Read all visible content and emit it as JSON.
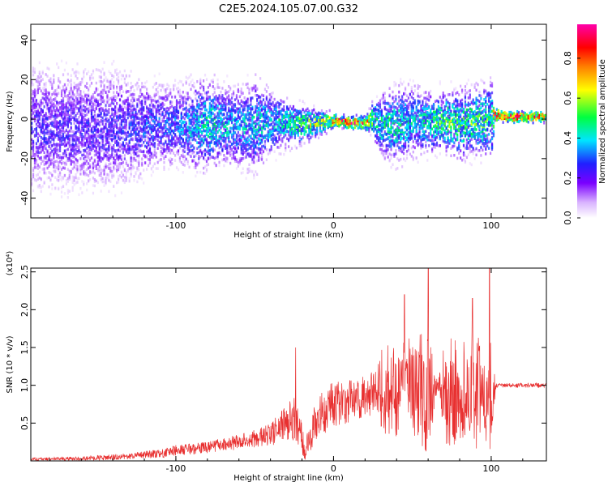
{
  "title": "C2E5.2024.105.07.00.G32",
  "chart_data": [
    {
      "type": "heatmap",
      "xlabel": "Height of straight line (km)",
      "ylabel": "Frequency (Hz)",
      "xlim": [
        -192,
        135
      ],
      "ylim": [
        -50,
        48
      ],
      "xticks": [
        -100,
        0,
        100
      ],
      "yticks": [
        -40,
        -20,
        0,
        20,
        40
      ],
      "colorbar": {
        "label": "Normalized spectral amplitude",
        "range": [
          0,
          0.97
        ],
        "ticks": [
          0.0,
          0.2,
          0.4,
          0.6,
          0.8
        ],
        "colormap": [
          "#ffffff",
          "#d9b3ff",
          "#7a00ff",
          "#2020ff",
          "#00e5ff",
          "#00ff40",
          "#ffff00",
          "#ff8000",
          "#ff0000",
          "#ff00aa"
        ]
      },
      "ridge": {
        "x": [
          -140,
          -120,
          -100,
          -90,
          -80,
          -70,
          -60,
          -50,
          -40,
          -30,
          -20,
          -10,
          0,
          10,
          20,
          25,
          30,
          40,
          50,
          60,
          70,
          80,
          90,
          100,
          102,
          110,
          120,
          135
        ],
        "freq": [
          -5,
          -4,
          -3,
          -4,
          -2,
          -3,
          -4,
          -3,
          -2,
          -2,
          -3,
          -2,
          -1,
          -2,
          -2,
          0,
          -3,
          -3,
          -1,
          -2,
          -1,
          -3,
          -1,
          -1,
          2,
          1,
          1,
          1
        ],
        "amplitude": [
          0.25,
          0.3,
          0.32,
          0.38,
          0.45,
          0.4,
          0.38,
          0.4,
          0.42,
          0.45,
          0.55,
          0.6,
          0.8,
          0.85,
          0.85,
          0.5,
          0.45,
          0.45,
          0.4,
          0.45,
          0.55,
          0.5,
          0.55,
          0.5,
          0.9,
          0.95,
          0.9,
          0.85
        ],
        "spread": [
          40,
          30,
          25,
          28,
          30,
          25,
          25,
          30,
          20,
          15,
          12,
          8,
          4,
          4,
          4,
          12,
          20,
          25,
          22,
          20,
          18,
          22,
          20,
          25,
          4,
          3,
          3,
          3
        ]
      }
    },
    {
      "type": "line",
      "xlabel": "Height of straight line (km)",
      "ylabel": "SNR (10 * v/v)",
      "scale_label": "(x10⁴)",
      "xlim": [
        -192,
        135
      ],
      "ylim": [
        0,
        2.55
      ],
      "xticks": [
        -100,
        0,
        100
      ],
      "yticks": [
        0.5,
        1.0,
        1.5,
        2.0,
        2.5
      ],
      "color": "#e83030",
      "envelope": {
        "x": [
          -192,
          -160,
          -130,
          -110,
          -100,
          -80,
          -60,
          -40,
          -25,
          -20,
          -18,
          -15,
          -10,
          0,
          10,
          20,
          25,
          28,
          30,
          40,
          50,
          60,
          66,
          70,
          80,
          90,
          100,
          103,
          110,
          120,
          135
        ],
        "baseline": [
          0.02,
          0.03,
          0.06,
          0.1,
          0.14,
          0.18,
          0.25,
          0.35,
          0.55,
          0.3,
          0.1,
          0.35,
          0.6,
          0.75,
          0.8,
          0.85,
          0.9,
          0.95,
          0.9,
          0.9,
          0.95,
          0.9,
          1.0,
          0.9,
          0.9,
          0.95,
          0.9,
          1.0,
          1.0,
          1.0,
          1.0
        ],
        "spread": [
          0.02,
          0.03,
          0.04,
          0.06,
          0.07,
          0.08,
          0.1,
          0.15,
          0.3,
          0.2,
          0.1,
          0.25,
          0.3,
          0.3,
          0.3,
          0.3,
          0.3,
          0.3,
          0.6,
          0.7,
          0.75,
          0.8,
          0.05,
          0.7,
          0.75,
          0.8,
          0.75,
          0.03,
          0.03,
          0.03,
          0.03
        ],
        "peaks": [
          {
            "x": -24,
            "y": 1.5
          },
          {
            "x": 60,
            "y": 2.55
          },
          {
            "x": 99,
            "y": 2.55
          },
          {
            "x": 45,
            "y": 2.2
          },
          {
            "x": 88,
            "y": 2.15
          }
        ]
      }
    }
  ]
}
